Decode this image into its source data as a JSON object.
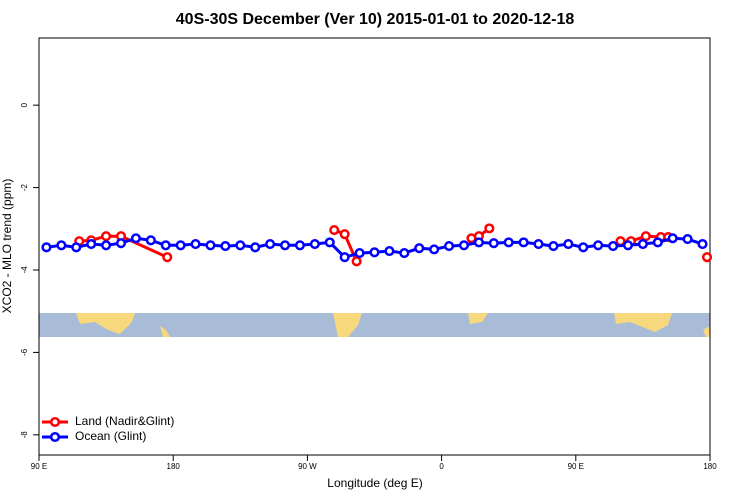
{
  "chart_data": {
    "type": "line",
    "title": "40S-30S December (Ver 10)   2015-01-01 to 2020-12-18",
    "xlabel": "Longitude (deg E)",
    "ylabel": "XCO2 - MLO trend (ppm)",
    "xlim": [
      90,
      540
    ],
    "xticks": [
      {
        "value": 90,
        "label": "90 E"
      },
      180,
      {
        "value": 270,
        "label": "90 W"
      },
      {
        "value": 360,
        "label": "0"
      },
      {
        "value": 450,
        "label": "90 E"
      },
      {
        "value": 540,
        "label": "180"
      }
    ],
    "ylim": [
      -8.49,
      1.63
    ],
    "yticks": [
      0,
      -2,
      -4,
      -6,
      -8
    ],
    "legend": "bottom-left",
    "series": [
      {
        "name": "Land (Nadir&Glint)",
        "color": "#ff0000",
        "x": [
          117,
          125,
          135,
          145,
          176,
          null,
          288,
          295,
          303,
          null,
          380,
          385,
          392,
          null,
          480,
          487,
          497,
          507,
          512,
          null,
          538
        ],
        "values": [
          -3.3,
          -3.28,
          -3.18,
          -3.18,
          -3.69,
          null,
          -3.03,
          -3.13,
          -3.79,
          null,
          -3.23,
          -3.18,
          -2.99,
          null,
          -3.3,
          -3.3,
          -3.18,
          -3.2,
          -3.2,
          null,
          -3.69
        ]
      },
      {
        "name": "Ocean (Glint)",
        "color": "#0000ff",
        "x": [
          95,
          105,
          115,
          125,
          135,
          145,
          155,
          165,
          175,
          185,
          195,
          205,
          215,
          225,
          235,
          245,
          255,
          265,
          275,
          285,
          295,
          305,
          315,
          325,
          335,
          345,
          355,
          365,
          375,
          385,
          395,
          405,
          415,
          425,
          435,
          445,
          455,
          465,
          475,
          485,
          495,
          505,
          515,
          525,
          535
        ],
        "values": [
          -3.45,
          -3.4,
          -3.45,
          -3.37,
          -3.4,
          -3.35,
          -3.23,
          -3.28,
          -3.4,
          -3.4,
          -3.37,
          -3.4,
          -3.42,
          -3.4,
          -3.45,
          -3.37,
          -3.4,
          -3.4,
          -3.37,
          -3.33,
          -3.69,
          -3.59,
          -3.57,
          -3.54,
          -3.59,
          -3.47,
          -3.5,
          -3.42,
          -3.4,
          -3.33,
          -3.35,
          -3.33,
          -3.33,
          -3.37,
          -3.42,
          -3.37,
          -3.45,
          -3.4,
          -3.42,
          -3.4,
          -3.37,
          -3.33,
          -3.23,
          -3.25,
          -3.37
        ]
      }
    ]
  }
}
